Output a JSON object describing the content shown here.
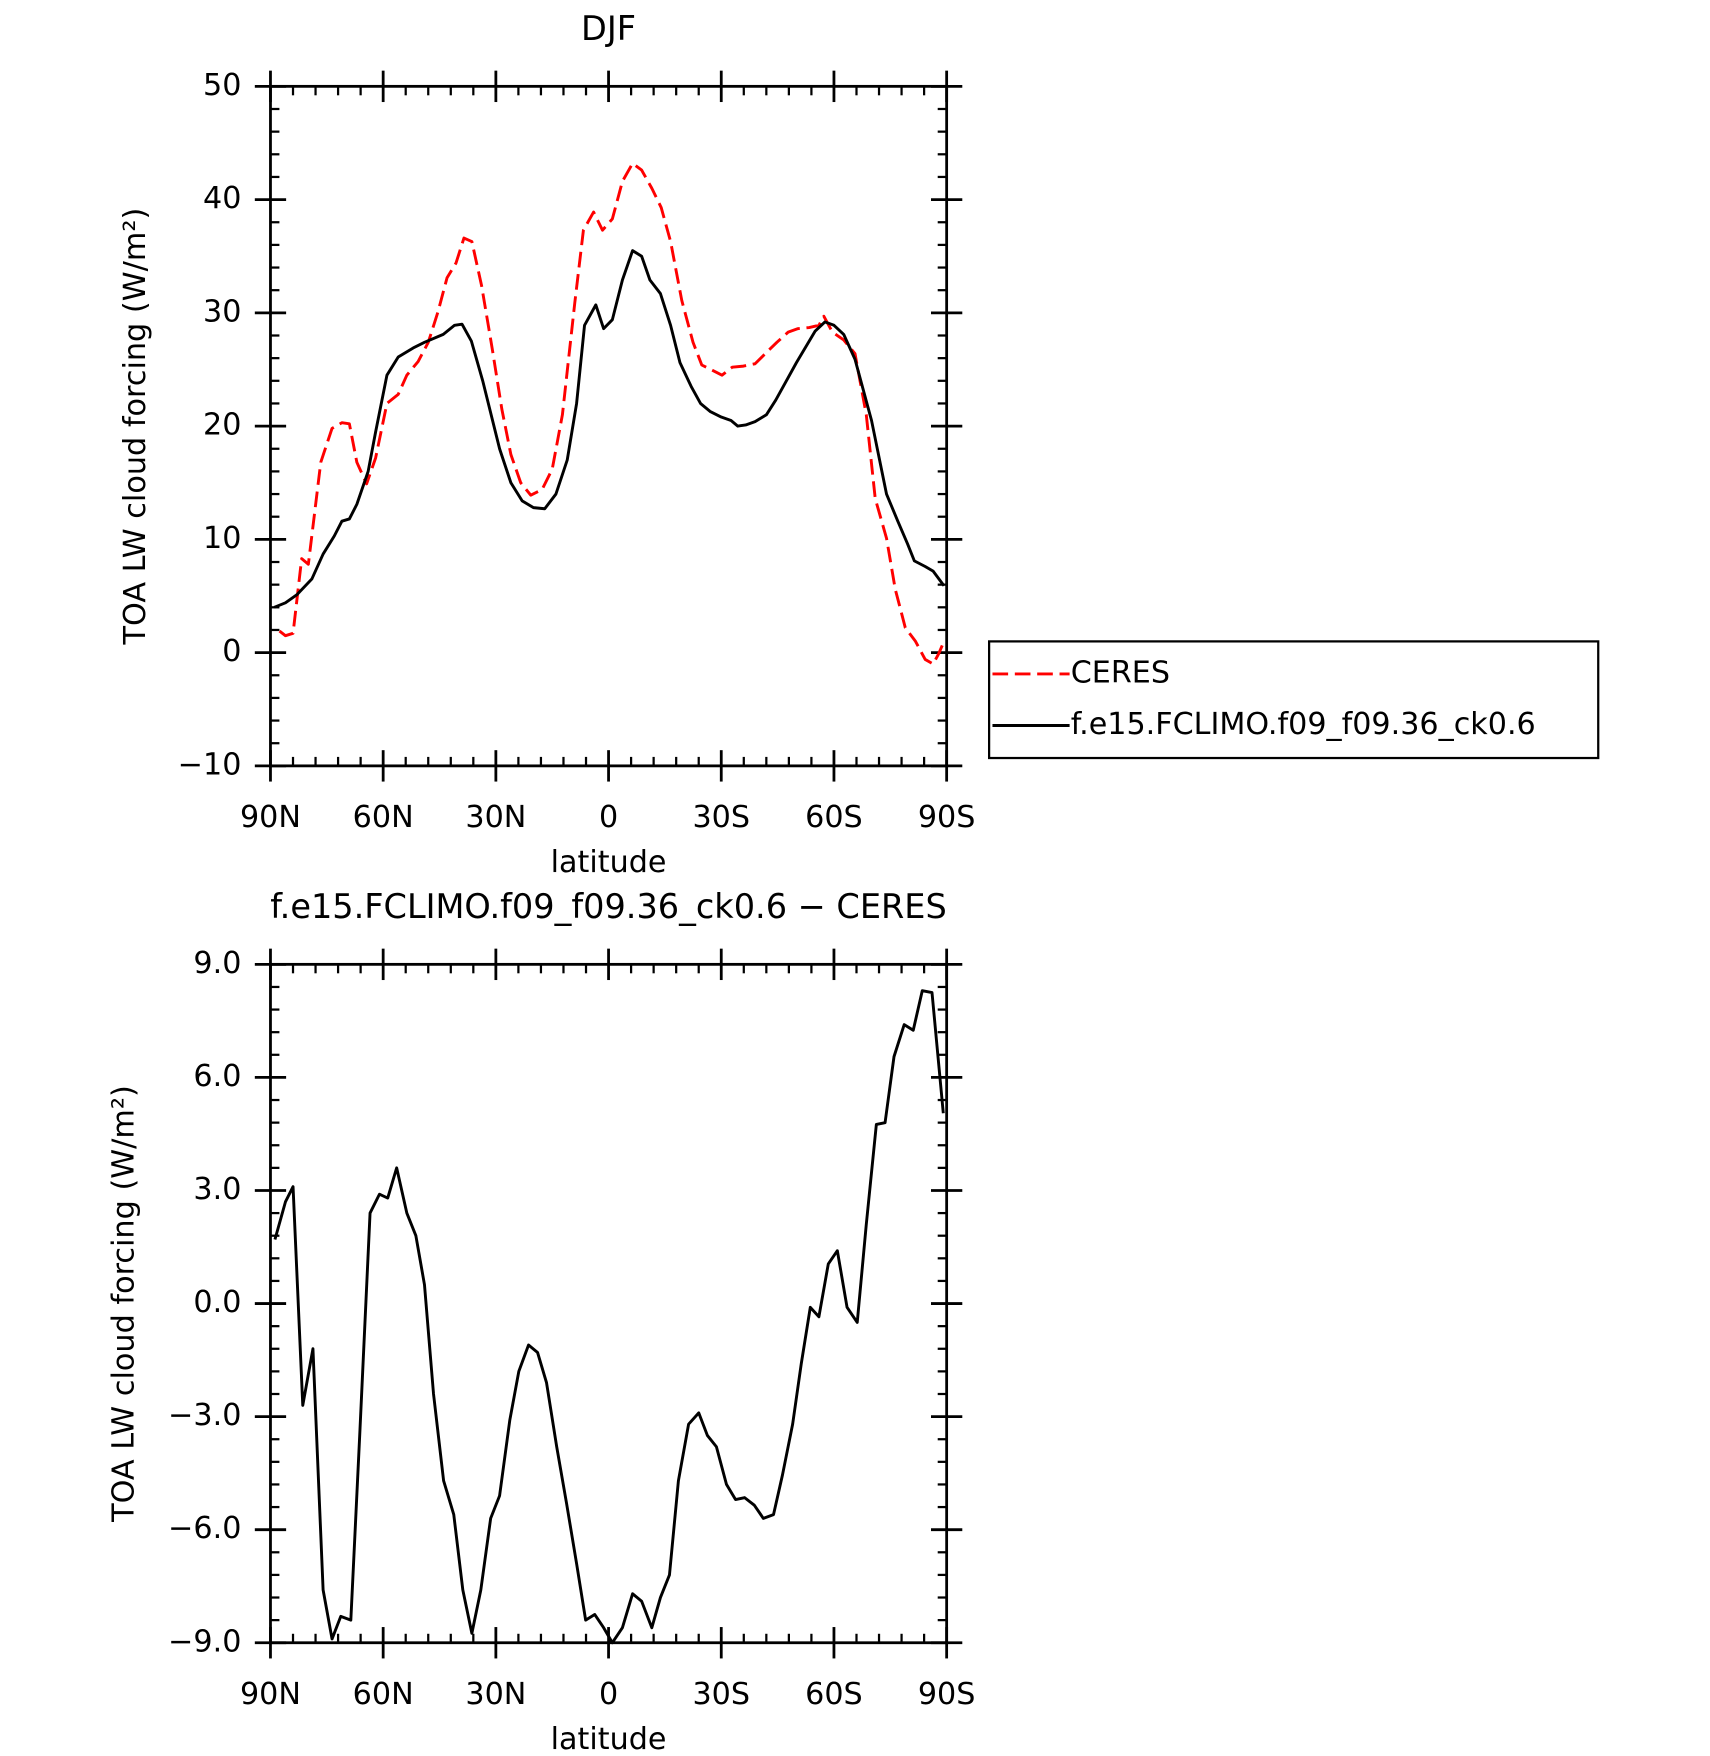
{
  "chart_data": [
    {
      "type": "line",
      "title": "DJF",
      "x_label": "latitude",
      "y_label": "TOA LW cloud forcing (W/m²)",
      "xlim": [
        90,
        -90
      ],
      "xticks": [
        {
          "value": 90,
          "label": "90N"
        },
        {
          "value": 60,
          "label": "60N"
        },
        {
          "value": 30,
          "label": "30N"
        },
        0,
        {
          "value": -30,
          "label": "30S"
        },
        {
          "value": -60,
          "label": "60S"
        },
        {
          "value": -90,
          "label": "90S"
        }
      ],
      "ylim": [
        -10,
        50
      ],
      "yticks": [
        {
          "value": -10,
          "label": "−10"
        },
        0,
        10,
        20,
        30,
        40,
        50
      ],
      "legend": "outside right",
      "series": [
        {
          "name": "CERES",
          "color": "#ff0000",
          "line_style": "dashed",
          "x": [
            87.6,
            86,
            84,
            81.7,
            79.9,
            76.6,
            73.6,
            71,
            69,
            67,
            64.4,
            62,
            59,
            56,
            53.7,
            50.7,
            48,
            45.4,
            43,
            40.6,
            38.5,
            36.4,
            33.8,
            31,
            28.4,
            26,
            23.4,
            20.7,
            17.7,
            15,
            12.3,
            9,
            6.7,
            4,
            1.6,
            -1,
            -3.7,
            -6.4,
            -8.8,
            -11.5,
            -14,
            -16.5,
            -19.5,
            -22.5,
            -24.8,
            -27.8,
            -30.2,
            -32.9,
            -35.9,
            -39,
            -42,
            -44.8,
            -47.8,
            -50.4,
            -53.4,
            -56,
            -57.3,
            -59.6,
            -62.6,
            -65.6,
            -68.6,
            -71,
            -74,
            -76.3,
            -79,
            -81.7,
            -84.3,
            -86.4,
            -87.9,
            -89.3
          ],
          "values": [
            1.9,
            1.5,
            1.7,
            8.3,
            7.8,
            16.8,
            19.8,
            20.3,
            20.2,
            16.8,
            14.9,
            17.2,
            22,
            22.8,
            24.5,
            25.7,
            27.4,
            30.1,
            33.1,
            34.4,
            36.6,
            36.3,
            32.4,
            26.9,
            21.5,
            17.5,
            15,
            13.9,
            14.4,
            16.2,
            21,
            30.9,
            37.3,
            38.9,
            37.3,
            38.3,
            41.6,
            43.2,
            42.6,
            41,
            39.3,
            36.3,
            31.1,
            27.4,
            25.4,
            24.9,
            24.5,
            25.2,
            25.3,
            25.5,
            26.5,
            27.4,
            28.3,
            28.6,
            28.7,
            28.9,
            29.7,
            28.3,
            27.6,
            26.4,
            21,
            13.6,
            10.1,
            5.6,
            2.2,
            1,
            -0.6,
            -1,
            -0.1,
            1
          ]
        },
        {
          "name": "f.e15.FCLIMO.f09_f09.36_ck0.6",
          "color": "#000000",
          "line_style": "solid",
          "x": [
            89,
            86,
            83,
            79,
            76,
            73,
            71,
            69,
            67,
            64,
            62,
            59,
            56,
            52,
            49,
            44,
            41,
            39,
            36.5,
            33.5,
            29,
            26,
            23,
            20,
            17,
            14,
            11,
            8.5,
            6.4,
            3.4,
            1.3,
            -1,
            -3.7,
            -6.4,
            -8.8,
            -11,
            -13.8,
            -16.5,
            -19,
            -22,
            -24.5,
            -27,
            -30,
            -32.6,
            -34.4,
            -36.5,
            -39,
            -42,
            -44.5,
            -50,
            -55,
            -57.6,
            -60,
            -62.6,
            -65.6,
            -70,
            -74,
            -77,
            -79.6,
            -81.4,
            -84.3,
            -86.4,
            -89.3
          ],
          "values": [
            4,
            4.4,
            5.1,
            6.5,
            8.7,
            10.3,
            11.6,
            11.8,
            13.1,
            16,
            19.5,
            24.5,
            26.1,
            26.9,
            27.4,
            28.1,
            28.9,
            29,
            27.5,
            24,
            18,
            15,
            13.4,
            12.8,
            12.7,
            14,
            17,
            22,
            28.9,
            30.7,
            28.6,
            29.4,
            32.9,
            35.5,
            35,
            32.9,
            31.7,
            28.9,
            25.6,
            23.5,
            22,
            21.3,
            20.8,
            20.5,
            20,
            20.1,
            20.4,
            21,
            22.3,
            25.6,
            28.4,
            29.2,
            28.9,
            28.1,
            25.9,
            20.5,
            14,
            11.6,
            9.6,
            8.1,
            7.6,
            7.2,
            5.9
          ]
        }
      ]
    },
    {
      "type": "line",
      "title": "f.e15.FCLIMO.f09_f09.36_ck0.6 − CERES",
      "x_label": "latitude",
      "y_label": "TOA LW cloud forcing (W/m²)",
      "xlim": [
        90,
        -90
      ],
      "xticks": [
        {
          "value": 90,
          "label": "90N"
        },
        {
          "value": 60,
          "label": "60N"
        },
        {
          "value": 30,
          "label": "30N"
        },
        0,
        {
          "value": -30,
          "label": "30S"
        },
        {
          "value": -60,
          "label": "60S"
        },
        {
          "value": -90,
          "label": "90S"
        }
      ],
      "ylim": [
        -9,
        9
      ],
      "yticks": [
        {
          "value": -9,
          "label": "−9.0"
        },
        {
          "value": -6,
          "label": "−6.0"
        },
        {
          "value": -3,
          "label": "−3.0"
        },
        {
          "value": 0,
          "label": "0.0"
        },
        {
          "value": 3,
          "label": "3.0"
        },
        {
          "value": 6,
          "label": "6.0"
        },
        {
          "value": 9,
          "label": "9.0"
        }
      ],
      "series": [
        {
          "color": "#000000",
          "line_style": "solid",
          "x": [
            88.8,
            86,
            84,
            81.4,
            78.7,
            76,
            73.6,
            71.3,
            68.6,
            66.2,
            63.5,
            61,
            58.8,
            56.4,
            53.7,
            51.3,
            49,
            46.6,
            43.9,
            41.2,
            38.8,
            36.4,
            34,
            31.4,
            29,
            26.3,
            23.9,
            21.3,
            18.9,
            16.5,
            13.8,
            11.2,
            8.5,
            6.1,
            3.7,
            1.3,
            -1,
            -3.7,
            -6.4,
            -8.8,
            -11.5,
            -13.8,
            -16.2,
            -18.6,
            -21.3,
            -24,
            -26.3,
            -28.7,
            -31.4,
            -33.8,
            -36.2,
            -38.8,
            -41.2,
            -43.9,
            -46.3,
            -49,
            -51.3,
            -53.7,
            -56,
            -58.5,
            -60.9,
            -63.5,
            -66.2,
            -68.6,
            -71.3,
            -73.6,
            -76,
            -78.7,
            -81.1,
            -83.5,
            -86.1,
            -89.1
          ],
          "values": [
            1.7,
            2.7,
            3.1,
            -2.7,
            -1.2,
            -7.6,
            -8.9,
            -8.3,
            -8.4,
            -3.4,
            2.4,
            2.9,
            2.8,
            3.6,
            2.4,
            1.8,
            0.5,
            -2.4,
            -4.7,
            -5.6,
            -7.6,
            -8.75,
            -7.6,
            -5.7,
            -5.1,
            -3.1,
            -1.8,
            -1.1,
            -1.3,
            -2.1,
            -3.8,
            -5.3,
            -6.9,
            -8.4,
            -8.25,
            -8.6,
            -9,
            -8.6,
            -7.7,
            -7.9,
            -8.6,
            -7.8,
            -7.2,
            -4.7,
            -3.2,
            -2.9,
            -3.5,
            -3.8,
            -4.8,
            -5.2,
            -5.15,
            -5.35,
            -5.7,
            -5.6,
            -4.55,
            -3.2,
            -1.6,
            -0.1,
            -0.35,
            1.05,
            1.4,
            -0.1,
            -0.5,
            2.1,
            4.75,
            4.8,
            6.55,
            7.4,
            7.25,
            8.3,
            8.25,
            5.05
          ]
        }
      ]
    }
  ]
}
